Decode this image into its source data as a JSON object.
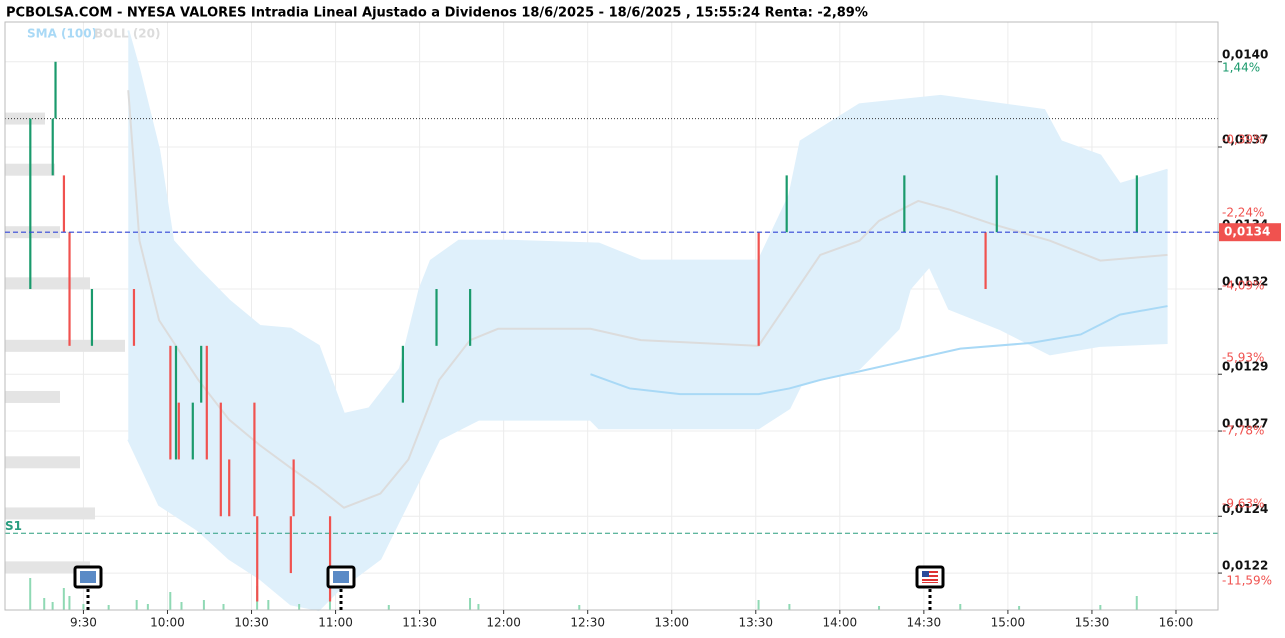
{
  "chart_data": {
    "type": "openclose",
    "title": "PCBOLSA.COM - NYESA VALORES Intradia Lineal Ajustado a Dividenos 18/6/2025 - 18/6/2025 , 15:55:24 Renta: -2,89%",
    "xlim": [
      542,
      975
    ],
    "xticks": [
      {
        "value": 570,
        "label": "9:30"
      },
      {
        "value": 600,
        "label": "10:00"
      },
      {
        "value": 630,
        "label": "10:30"
      },
      {
        "value": 660,
        "label": "11:00"
      },
      {
        "value": 690,
        "label": "11:30"
      },
      {
        "value": 720,
        "label": "12:00"
      },
      {
        "value": 750,
        "label": "12:30"
      },
      {
        "value": 780,
        "label": "13:00"
      },
      {
        "value": 810,
        "label": "13:30"
      },
      {
        "value": 840,
        "label": "14:00"
      },
      {
        "value": 870,
        "label": "14:30"
      },
      {
        "value": 900,
        "label": "15:00"
      },
      {
        "value": 930,
        "label": "15:30"
      },
      {
        "value": 960,
        "label": "16:00"
      }
    ],
    "ylim": [
      0.01207,
      0.01414
    ],
    "yticks": [
      {
        "value": 0.014,
        "label": "0,0140"
      },
      {
        "value": 0.0137,
        "label": "0,0137"
      },
      {
        "value": 0.0134,
        "label": "0,0134"
      },
      {
        "value": 0.0132,
        "label": "0,0132"
      },
      {
        "value": 0.0129,
        "label": "0,0129"
      },
      {
        "value": 0.0127,
        "label": "0,0127"
      },
      {
        "value": 0.0124,
        "label": "0,0124"
      },
      {
        "value": 0.0122,
        "label": "0,0122"
      }
    ],
    "y2lim": [
      -12.5,
      2.43
    ],
    "y2ticks": [
      {
        "value": 1.44,
        "label": "1,44%"
      },
      {
        "value": -0.39,
        "label": "-0,39%"
      },
      {
        "value": -2.24,
        "label": "-2,24%"
      },
      {
        "value": -4.09,
        "label": "-4,09%"
      },
      {
        "value": -5.93,
        "label": "-5,93%"
      },
      {
        "value": -7.78,
        "label": "-7,78%"
      },
      {
        "value": -9.63,
        "label": "-9,63%"
      },
      {
        "value": -11.59,
        "label": "-11,59%"
      }
    ],
    "grid": true,
    "up_color": "#1a9a6c",
    "down_color": "#f0524f",
    "bars": {
      "x": [
        551,
        559,
        560,
        563,
        565,
        573,
        588,
        601,
        603,
        604,
        609,
        612,
        614,
        619,
        622,
        631,
        632,
        644,
        645,
        658,
        684,
        696,
        708,
        811,
        821,
        863,
        892,
        896,
        946
      ],
      "open": [
        0.0132,
        0.0136,
        0.0138,
        0.0136,
        0.0134,
        0.013,
        0.0132,
        0.013,
        0.0126,
        0.0128,
        0.0126,
        0.0128,
        0.013,
        0.0128,
        0.0126,
        0.0128,
        0.0124,
        0.0124,
        0.0126,
        0.0124,
        0.0128,
        0.013,
        0.013,
        0.0134,
        0.0134,
        0.0134,
        0.0134,
        0.0134,
        0.0134
      ],
      "close": [
        0.0138,
        0.0138,
        0.014,
        0.0134,
        0.013,
        0.0132,
        0.013,
        0.0126,
        0.013,
        0.0126,
        0.0128,
        0.013,
        0.0126,
        0.0124,
        0.0124,
        0.0124,
        0.0121,
        0.0122,
        0.0124,
        0.0121,
        0.013,
        0.0132,
        0.0132,
        0.013,
        0.0136,
        0.0136,
        0.0132,
        0.0136,
        0.0136
      ]
    },
    "series": [
      {
        "name": "SMA (100)",
        "color": "#a9d9f6",
        "x": [
          751,
          765,
          783,
          811,
          822,
          833,
          847,
          865,
          883,
          908,
          926,
          940,
          957
        ],
        "values": [
          0.0129,
          0.01285,
          0.01283,
          0.01283,
          0.01285,
          0.01288,
          0.01291,
          0.01295,
          0.01299,
          0.01301,
          0.01304,
          0.01311,
          0.01314
        ]
      },
      {
        "name": "BOLL (20)",
        "color": "#dcdcdc",
        "fill": "#dff0fb",
        "x": [
          586,
          590,
          597,
          611,
          622,
          633,
          644,
          654,
          663,
          676,
          686,
          697,
          708,
          718,
          751,
          769,
          811,
          822,
          833,
          847,
          854,
          868,
          879,
          894,
          915,
          933,
          957
        ],
        "values": [
          0.0139,
          0.01337,
          0.01309,
          0.01288,
          0.01274,
          0.01265,
          0.01257,
          0.0125,
          0.01243,
          0.01248,
          0.0126,
          0.01288,
          0.01302,
          0.01306,
          0.01306,
          0.01302,
          0.013,
          0.01316,
          0.01332,
          0.01337,
          0.01344,
          0.01351,
          0.01348,
          0.01343,
          0.01337,
          0.0133,
          0.01332
        ],
        "upper": {
          "x": [
            586,
            590,
            597,
            602,
            611,
            622,
            633,
            644,
            654,
            663,
            672,
            683,
            690,
            694,
            704,
            722,
            754,
            769,
            811,
            822,
            826,
            847,
            876,
            913,
            919,
            933,
            940,
            957
          ],
          "values": [
            0.01411,
            0.01397,
            0.01369,
            0.01337,
            0.01327,
            0.01316,
            0.01307,
            0.01306,
            0.013,
            0.01276,
            0.01278,
            0.01292,
            0.0132,
            0.0133,
            0.01337,
            0.01337,
            0.01336,
            0.0133,
            0.0133,
            0.01353,
            0.01372,
            0.01385,
            0.01388,
            0.01383,
            0.01372,
            0.01367,
            0.01357,
            0.01362
          ]
        },
        "lower": {
          "x": [
            586,
            597,
            611,
            622,
            633,
            644,
            654,
            661,
            676,
            683,
            697,
            711,
            751,
            754,
            811,
            822,
            826,
            847,
            861,
            865,
            872,
            879,
            897,
            915,
            933,
            957
          ],
          "values": [
            0.01267,
            0.01244,
            0.01235,
            0.01225,
            0.01218,
            0.01209,
            0.01207,
            0.01214,
            0.01225,
            0.01239,
            0.01267,
            0.01274,
            0.01274,
            0.01271,
            0.01271,
            0.01278,
            0.01286,
            0.01292,
            0.01306,
            0.0132,
            0.01328,
            0.01313,
            0.01306,
            0.01297,
            0.013,
            0.01301
          ]
        }
      }
    ],
    "reference_line": {
      "value": 0.0138,
      "color": "#333333"
    },
    "last_price": {
      "value": 0.0134,
      "label": "0,0134",
      "color": "#3346d6",
      "box_color": "#f0524f"
    },
    "support": {
      "value": 0.01234,
      "label": "S1",
      "color": "#2a9d7f"
    },
    "volume": {
      "ylim": [
        0,
        100
      ],
      "color": "#8fd9b4",
      "x": [
        551,
        556,
        559,
        563,
        565,
        570,
        579,
        589,
        593,
        601,
        605,
        613,
        620,
        632,
        636,
        647,
        658,
        679,
        708,
        711,
        747,
        811,
        822,
        854,
        883,
        904,
        933,
        946
      ],
      "values": [
        32,
        12,
        8,
        22,
        14,
        6,
        5,
        10,
        6,
        18,
        8,
        10,
        6,
        24,
        10,
        6,
        12,
        5,
        12,
        6,
        5,
        10,
        6,
        4,
        6,
        4,
        5,
        14
      ]
    },
    "profile": {
      "xlim": [
        0,
        140
      ],
      "color": "#e4e4e4",
      "levels": [
        0.0138,
        0.01362,
        0.0134,
        0.01322,
        0.013,
        0.01282,
        0.01259,
        0.01241,
        0.01222
      ],
      "values": [
        40,
        50,
        55,
        85,
        120,
        55,
        75,
        90,
        85
      ]
    }
  }
}
